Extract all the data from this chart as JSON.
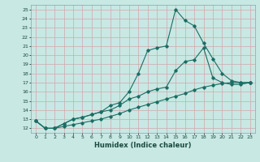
{
  "title": "",
  "xlabel": "Humidex (Indice chaleur)",
  "bg_color": "#c8e8e4",
  "grid_color": "#b0d8d4",
  "line_color": "#1a6e64",
  "xlim": [
    -0.5,
    23.5
  ],
  "ylim": [
    11.5,
    25.5
  ],
  "xticks": [
    0,
    1,
    2,
    3,
    4,
    5,
    6,
    7,
    8,
    9,
    10,
    11,
    12,
    13,
    14,
    15,
    16,
    17,
    18,
    19,
    20,
    21,
    22,
    23
  ],
  "yticks": [
    12,
    13,
    14,
    15,
    16,
    17,
    18,
    19,
    20,
    21,
    22,
    23,
    24,
    25
  ],
  "line1_x": [
    0,
    1,
    2,
    3,
    4,
    5,
    6,
    7,
    8,
    9,
    10,
    11,
    12,
    13,
    14,
    15,
    16,
    17,
    18,
    19,
    20,
    21,
    22,
    23
  ],
  "line1_y": [
    12.8,
    12.0,
    12.0,
    12.5,
    13.0,
    13.2,
    13.5,
    13.8,
    14.5,
    14.8,
    16.0,
    18.0,
    20.5,
    20.8,
    21.0,
    25.0,
    23.8,
    23.2,
    21.3,
    19.6,
    18.0,
    17.2,
    17.0,
    17.0
  ],
  "line2_x": [
    0,
    1,
    2,
    3,
    4,
    5,
    6,
    7,
    8,
    9,
    10,
    11,
    12,
    13,
    14,
    15,
    16,
    17,
    18,
    19,
    20,
    21,
    22,
    23
  ],
  "line2_y": [
    12.8,
    12.0,
    12.0,
    12.5,
    13.0,
    13.2,
    13.5,
    13.8,
    14.0,
    14.5,
    15.2,
    15.5,
    16.0,
    16.3,
    16.5,
    18.3,
    19.3,
    19.5,
    20.8,
    17.5,
    17.0,
    16.8,
    16.8,
    17.0
  ],
  "line3_x": [
    0,
    1,
    2,
    3,
    4,
    5,
    6,
    7,
    8,
    9,
    10,
    11,
    12,
    13,
    14,
    15,
    16,
    17,
    18,
    19,
    20,
    21,
    22,
    23
  ],
  "line3_y": [
    12.8,
    12.0,
    12.0,
    12.2,
    12.4,
    12.6,
    12.8,
    13.0,
    13.3,
    13.6,
    14.0,
    14.3,
    14.6,
    14.9,
    15.2,
    15.5,
    15.8,
    16.2,
    16.5,
    16.7,
    16.9,
    17.0,
    17.0,
    17.0
  ]
}
